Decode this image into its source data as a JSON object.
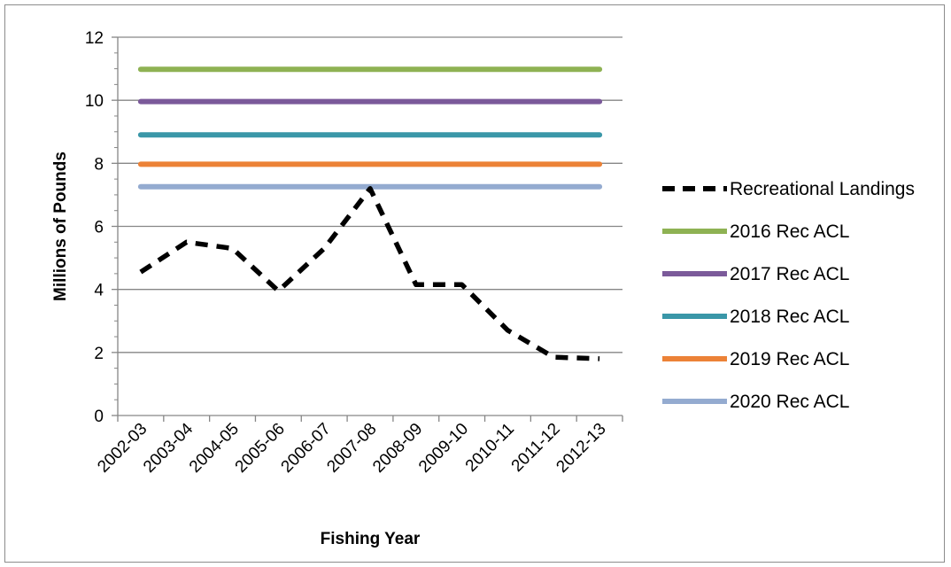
{
  "chart_data": {
    "type": "line",
    "title": "",
    "xlabel": "Fishing Year",
    "ylabel": "Millions of Pounds",
    "ylim": [
      0,
      12
    ],
    "yticks": [
      0,
      2,
      4,
      6,
      8,
      10,
      12
    ],
    "grid": "horizontal",
    "legend_position": "right",
    "categories": [
      "2002-03",
      "2003-04",
      "2004-05",
      "2005-06",
      "2006-07",
      "2007-08",
      "2008-09",
      "2009-10",
      "2010-11",
      "2011-12",
      "2012-13"
    ],
    "series": [
      {
        "name": "Recreational Landings",
        "color": "#000000",
        "style": "dashed",
        "values": [
          4.55,
          5.5,
          5.3,
          3.95,
          5.3,
          7.2,
          4.15,
          4.15,
          2.7,
          1.85,
          1.8
        ]
      },
      {
        "name": "2016 Rec ACL",
        "color": "#8eb253",
        "style": "solid",
        "values": [
          10.98,
          10.98,
          10.98,
          10.98,
          10.98,
          10.98,
          10.98,
          10.98,
          10.98,
          10.98,
          10.98
        ]
      },
      {
        "name": "2017 Rec ACL",
        "color": "#7b5a9a",
        "style": "solid",
        "values": [
          9.96,
          9.96,
          9.96,
          9.96,
          9.96,
          9.96,
          9.96,
          9.96,
          9.96,
          9.96,
          9.96
        ]
      },
      {
        "name": "2018 Rec ACL",
        "color": "#3a97a8",
        "style": "solid",
        "values": [
          8.9,
          8.9,
          8.9,
          8.9,
          8.9,
          8.9,
          8.9,
          8.9,
          8.9,
          8.9,
          8.9
        ]
      },
      {
        "name": "2019 Rec ACL",
        "color": "#ec8237",
        "style": "solid",
        "values": [
          7.97,
          7.97,
          7.97,
          7.97,
          7.97,
          7.97,
          7.97,
          7.97,
          7.97,
          7.97,
          7.97
        ]
      },
      {
        "name": "2020 Rec ACL",
        "color": "#94abd0",
        "style": "solid",
        "values": [
          7.26,
          7.26,
          7.26,
          7.26,
          7.26,
          7.26,
          7.26,
          7.26,
          7.26,
          7.26,
          7.26
        ]
      }
    ]
  }
}
